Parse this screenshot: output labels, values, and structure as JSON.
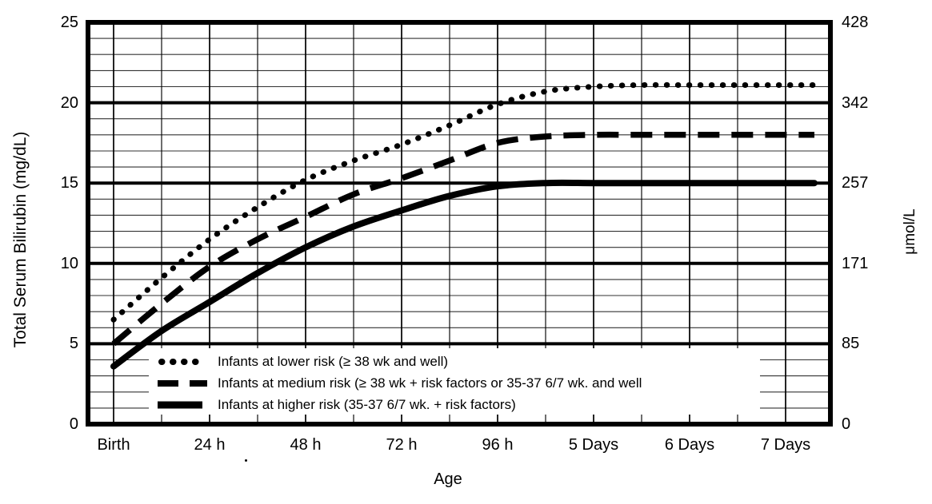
{
  "figure": {
    "background": "#ffffff",
    "ink_color": "#000000"
  },
  "chart_data": {
    "type": "line",
    "title": "",
    "xlabel": "Age",
    "ylabel_left": "Total Serum Bilirubin (mg/dL)",
    "ylabel_right": "μmol/L",
    "xlim_hours": [
      0,
      168
    ],
    "ylim_mgdl": [
      0,
      25
    ],
    "grid": {
      "shown": true,
      "x_minor_step_hours": 12,
      "y_minor_step_mgdl": 1,
      "y_major_step_mgdl": 5
    },
    "legend_position": "bottom-inside",
    "x_ticks": [
      {
        "hours": 0,
        "label": "Birth"
      },
      {
        "hours": 24,
        "label": "24 h"
      },
      {
        "hours": 48,
        "label": "48 h"
      },
      {
        "hours": 72,
        "label": "72 h"
      },
      {
        "hours": 96,
        "label": "96 h"
      },
      {
        "hours": 120,
        "label": "5 Days"
      },
      {
        "hours": 144,
        "label": "6 Days"
      },
      {
        "hours": 168,
        "label": "7 Days"
      }
    ],
    "y_left_ticks": [
      {
        "value": 0,
        "label": "0"
      },
      {
        "value": 5,
        "label": "5"
      },
      {
        "value": 10,
        "label": "10"
      },
      {
        "value": 15,
        "label": "15"
      },
      {
        "value": 20,
        "label": "20"
      },
      {
        "value": 25,
        "label": "25"
      }
    ],
    "y_right_ticks": [
      {
        "value_mgdl": 0,
        "label": "0"
      },
      {
        "value_mgdl": 5,
        "label": "85"
      },
      {
        "value_mgdl": 10,
        "label": "171"
      },
      {
        "value_mgdl": 15,
        "label": "257"
      },
      {
        "value_mgdl": 20,
        "label": "342"
      },
      {
        "value_mgdl": 25,
        "label": "428"
      }
    ],
    "series": [
      {
        "name": "infants-lower-risk",
        "line_style": "dotted",
        "label": "Infants at lower risk (≥ 38 wk and well)",
        "points_hours_mgdl": [
          [
            0,
            6.5
          ],
          [
            12,
            9.1
          ],
          [
            24,
            11.5
          ],
          [
            36,
            13.5
          ],
          [
            48,
            15.2
          ],
          [
            60,
            16.4
          ],
          [
            72,
            17.4
          ],
          [
            84,
            18.6
          ],
          [
            96,
            19.9
          ],
          [
            108,
            20.7
          ],
          [
            120,
            21.0
          ],
          [
            132,
            21.1
          ],
          [
            144,
            21.1
          ],
          [
            156,
            21.1
          ],
          [
            168,
            21.1
          ]
        ]
      },
      {
        "name": "infants-medium-risk",
        "line_style": "dashed",
        "label": "Infants at medium risk (≥ 38 wk + risk factors or 35-37 6/7 wk. and well",
        "points_hours_mgdl": [
          [
            0,
            5.0
          ],
          [
            12,
            7.5
          ],
          [
            24,
            9.8
          ],
          [
            36,
            11.5
          ],
          [
            48,
            12.9
          ],
          [
            60,
            14.3
          ],
          [
            72,
            15.3
          ],
          [
            84,
            16.4
          ],
          [
            96,
            17.5
          ],
          [
            108,
            17.9
          ],
          [
            120,
            18.0
          ],
          [
            132,
            18.0
          ],
          [
            144,
            18.0
          ],
          [
            156,
            18.0
          ],
          [
            168,
            18.0
          ]
        ]
      },
      {
        "name": "infants-higher-risk",
        "line_style": "solid",
        "label": "Infants at higher risk (35-37 6/7 wk. + risk factors)",
        "points_hours_mgdl": [
          [
            0,
            3.6
          ],
          [
            12,
            5.8
          ],
          [
            24,
            7.6
          ],
          [
            36,
            9.4
          ],
          [
            48,
            11.0
          ],
          [
            60,
            12.3
          ],
          [
            72,
            13.3
          ],
          [
            84,
            14.2
          ],
          [
            96,
            14.8
          ],
          [
            108,
            15.0
          ],
          [
            120,
            15.0
          ],
          [
            132,
            15.0
          ],
          [
            144,
            15.0
          ],
          [
            156,
            15.0
          ],
          [
            168,
            15.0
          ]
        ]
      }
    ]
  }
}
